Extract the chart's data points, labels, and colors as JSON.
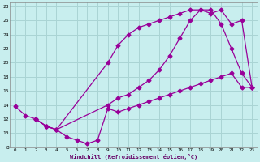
{
  "xlabel": "Windchill (Refroidissement éolien,°C)",
  "xlim": [
    -0.5,
    23.5
  ],
  "ylim": [
    8,
    28.5
  ],
  "yticks": [
    8,
    10,
    12,
    14,
    16,
    18,
    20,
    22,
    24,
    26,
    28
  ],
  "xticks": [
    0,
    1,
    2,
    3,
    4,
    5,
    6,
    7,
    8,
    9,
    10,
    11,
    12,
    13,
    14,
    15,
    16,
    17,
    18,
    19,
    20,
    21,
    22,
    23
  ],
  "bg_color": "#c8eeee",
  "grid_color": "#aad4d4",
  "line_color": "#990099",
  "curve1_x": [
    0,
    1,
    2,
    3,
    4,
    5,
    6,
    7,
    8,
    9,
    10,
    11,
    12,
    13,
    14,
    15,
    16,
    17,
    18,
    19,
    20,
    21,
    22,
    23
  ],
  "curve1_y": [
    13.8,
    12.5,
    12.0,
    11.0,
    10.5,
    9.5,
    9.0,
    8.5,
    9.0,
    13.5,
    13.0,
    13.5,
    14.0,
    14.5,
    15.0,
    15.5,
    16.0,
    16.5,
    17.0,
    17.5,
    18.0,
    18.5,
    16.5,
    16.5
  ],
  "curve2_x": [
    2,
    3,
    4,
    9,
    10,
    11,
    12,
    13,
    14,
    15,
    16,
    17,
    18,
    19,
    20,
    21,
    22,
    23
  ],
  "curve2_y": [
    12.0,
    11.0,
    10.5,
    20.0,
    22.5,
    24.0,
    25.0,
    25.5,
    26.0,
    26.5,
    27.0,
    27.5,
    27.5,
    27.5,
    25.5,
    22.0,
    18.5,
    16.5
  ],
  "curve3_x": [
    2,
    3,
    4,
    9,
    10,
    11,
    12,
    13,
    14,
    15,
    16,
    17,
    18,
    19,
    20,
    21,
    22,
    23
  ],
  "curve3_y": [
    12.0,
    11.0,
    10.5,
    14.0,
    15.0,
    15.5,
    16.5,
    17.5,
    19.0,
    21.0,
    23.5,
    26.0,
    27.5,
    27.0,
    27.5,
    25.5,
    26.0,
    16.5
  ]
}
